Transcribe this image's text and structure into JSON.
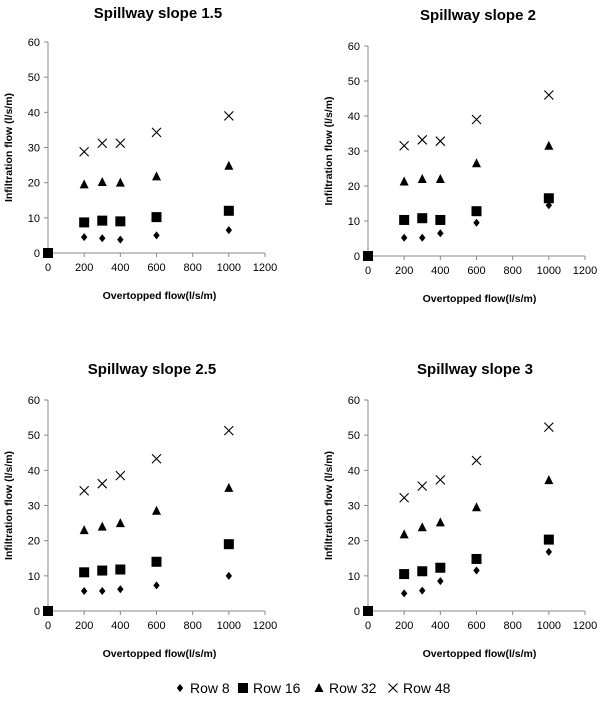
{
  "chart_data": [
    {
      "type": "scatter",
      "title": "Spillway slope 1.5",
      "xlabel": "Overtopped flow(l/s/m)",
      "ylabel": "Infiltration flow (l/s/m)",
      "xlim": [
        0,
        1200
      ],
      "ylim": [
        0,
        60
      ],
      "x_ticks": [
        "0",
        "200",
        "400",
        "600",
        "800",
        "1000",
        "1200"
      ],
      "y_ticks": [
        "0",
        "10",
        "20",
        "30",
        "40",
        "50",
        "60"
      ],
      "x": [
        0,
        200,
        300,
        400,
        600,
        1000
      ],
      "series": [
        {
          "name": "Row 8",
          "values": [
            0,
            4.5,
            4.2,
            3.8,
            5,
            6.5
          ]
        },
        {
          "name": "Row 16",
          "values": [
            0,
            8.7,
            9.2,
            9,
            10.2,
            12
          ]
        },
        {
          "name": "Row 32",
          "values": [
            0,
            19.5,
            20.2,
            20,
            21.8,
            24.8
          ]
        },
        {
          "name": "Row 48",
          "values": [
            0,
            28.8,
            31.2,
            31.2,
            34.3,
            39
          ]
        }
      ]
    },
    {
      "type": "scatter",
      "title": "Spillway slope 2",
      "xlabel": "Overtopped flow(l/s/m)",
      "ylabel": "Infiltration flow (l/s/m)",
      "xlim": [
        0,
        1200
      ],
      "ylim": [
        0,
        60
      ],
      "x_ticks": [
        "0",
        "200",
        "400",
        "600",
        "800",
        "1000",
        "1200"
      ],
      "y_ticks": [
        "0",
        "10",
        "20",
        "30",
        "40",
        "50",
        "60"
      ],
      "x": [
        0,
        200,
        300,
        400,
        600,
        1000
      ],
      "series": [
        {
          "name": "Row 8",
          "values": [
            0,
            5.2,
            5.2,
            6.5,
            9.5,
            14.5
          ]
        },
        {
          "name": "Row 16",
          "values": [
            0,
            10.3,
            10.8,
            10.3,
            12.8,
            16.5
          ]
        },
        {
          "name": "Row 32",
          "values": [
            0,
            21.3,
            22,
            22,
            26.5,
            31.5
          ]
        },
        {
          "name": "Row 48",
          "values": [
            0,
            31.5,
            33.2,
            32.8,
            39,
            46
          ]
        }
      ]
    },
    {
      "type": "scatter",
      "title": "Spillway slope 2.5",
      "xlabel": "Overtopped flow(l/s/m)",
      "ylabel": "Infiltration flow (l/s/m)",
      "xlim": [
        0,
        1200
      ],
      "ylim": [
        0,
        60
      ],
      "x_ticks": [
        "0",
        "200",
        "400",
        "600",
        "800",
        "1000",
        "1200"
      ],
      "y_ticks": [
        "0",
        "10",
        "20",
        "30",
        "40",
        "50",
        "60"
      ],
      "x": [
        0,
        200,
        300,
        400,
        600,
        1000
      ],
      "series": [
        {
          "name": "Row 8",
          "values": [
            0,
            5.7,
            5.7,
            6.2,
            7.3,
            10
          ]
        },
        {
          "name": "Row 16",
          "values": [
            0,
            11,
            11.5,
            11.8,
            14,
            19
          ]
        },
        {
          "name": "Row 32",
          "values": [
            0,
            23,
            24,
            25,
            28.5,
            35
          ]
        },
        {
          "name": "Row 48",
          "values": [
            0,
            34.2,
            36.2,
            38.5,
            43.3,
            51.3
          ]
        }
      ]
    },
    {
      "type": "scatter",
      "title": "Spillway slope 3",
      "xlabel": "Overtopped flow(l/s/m)",
      "ylabel": "Infiltration flow (l/s/m)",
      "xlim": [
        0,
        1200
      ],
      "ylim": [
        0,
        60
      ],
      "x_ticks": [
        "0",
        "200",
        "400",
        "600",
        "800",
        "1000",
        "1200"
      ],
      "y_ticks": [
        "0",
        "10",
        "20",
        "30",
        "40",
        "50",
        "60"
      ],
      "x": [
        0,
        200,
        300,
        400,
        600,
        1000
      ],
      "series": [
        {
          "name": "Row 8",
          "values": [
            0,
            5,
            5.8,
            8.5,
            11.5,
            16.8
          ]
        },
        {
          "name": "Row 16",
          "values": [
            0,
            10.5,
            11.3,
            12.3,
            14.8,
            20.3
          ]
        },
        {
          "name": "Row 32",
          "values": [
            0,
            21.8,
            23.8,
            25.2,
            29.5,
            37.2
          ]
        },
        {
          "name": "Row 48",
          "values": [
            0,
            32.2,
            35.5,
            37.3,
            42.8,
            52.3
          ]
        }
      ]
    }
  ],
  "legend": {
    "placement": "bottom",
    "items": [
      {
        "label": "Row 8",
        "marker": "diamond-icon"
      },
      {
        "label": "Row 16",
        "marker": "square-icon"
      },
      {
        "label": "Row 32",
        "marker": "triangle-icon"
      },
      {
        "label": "Row 48",
        "marker": "cross-icon"
      }
    ]
  },
  "colors": {
    "marker": "#000000",
    "axis": "#888888",
    "background": "#ffffff"
  }
}
